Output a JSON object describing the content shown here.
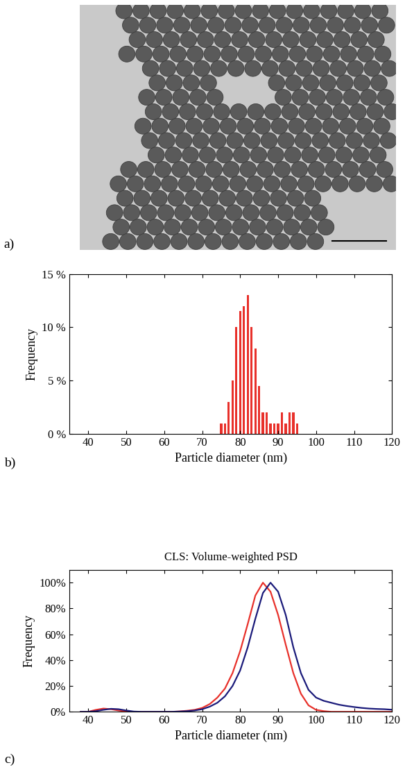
{
  "chart_data": [
    {
      "type": "image",
      "label": "a)"
    },
    {
      "type": "histogram",
      "label": "b)",
      "x_label": "Particle diameter (nm)",
      "y_label": "Frequency",
      "bins": [
        74.5,
        75.5,
        76.5,
        77.5,
        78.5,
        79.5,
        80.5,
        81.5,
        82.5,
        83.5,
        84.5,
        85.5,
        86.5,
        87.5,
        88.5,
        89.5,
        90.5,
        91.5,
        92.5,
        93.5,
        94.5,
        95.5
      ],
      "values": [
        1,
        1,
        3,
        5,
        10,
        11.5,
        12,
        13,
        10,
        8,
        4.5,
        2,
        2,
        1,
        1,
        1,
        2,
        1,
        2,
        2,
        1
      ],
      "color": "#e8302a",
      "xlim": [
        35,
        120
      ],
      "xticks": [
        40,
        50,
        60,
        70,
        80,
        90,
        100,
        110,
        120
      ],
      "ylim": [
        0,
        15
      ],
      "yticks": [
        {
          "value": 0,
          "label": "0 %"
        },
        {
          "value": 5,
          "label": "5 %"
        },
        {
          "value": 10,
          "label": "10 %"
        },
        {
          "value": 15,
          "label": "15 %"
        }
      ],
      "grid": false
    },
    {
      "type": "line",
      "label": "c)",
      "title": "CLS: Volume-weighted PSD",
      "x_label": "Particle diameter (nm)",
      "y_label": "Frequency",
      "x": [
        38,
        40,
        42,
        44,
        46,
        48,
        50,
        52,
        54,
        56,
        58,
        60,
        62,
        64,
        66,
        68,
        70,
        72,
        74,
        76,
        78,
        80,
        82,
        84,
        86,
        88,
        90,
        92,
        94,
        96,
        98,
        100,
        102,
        104,
        106,
        108,
        110,
        112,
        114,
        116,
        118,
        120
      ],
      "series": [
        {
          "color": "#e8302a",
          "values": [
            0,
            0,
            1.5,
            2.5,
            2,
            1,
            0.3,
            0,
            0,
            0,
            0,
            0,
            0,
            0.3,
            0.8,
            1.5,
            3,
            6,
            11,
            18,
            30,
            47,
            68,
            90,
            100,
            93,
            75,
            52,
            30,
            14,
            5,
            1.5,
            0.5,
            0,
            0,
            0,
            0,
            0,
            0,
            0,
            0,
            0
          ]
        },
        {
          "color": "#1a1a7a",
          "values": [
            0,
            0,
            0.5,
            1.5,
            2.3,
            2,
            1,
            0.2,
            0,
            0,
            0,
            0,
            0,
            0.2,
            0.5,
            1,
            2,
            4,
            7,
            12,
            20,
            32,
            50,
            72,
            92,
            100,
            93,
            75,
            50,
            30,
            17,
            11,
            8.5,
            7,
            5.5,
            4.5,
            3.7,
            3,
            2.5,
            2.2,
            2,
            1.6
          ]
        }
      ],
      "xlim": [
        35,
        120
      ],
      "xticks": [
        40,
        50,
        60,
        70,
        80,
        90,
        100,
        110,
        120
      ],
      "ylim": [
        0,
        110
      ],
      "yticks": [
        {
          "value": 0,
          "label": "0%"
        },
        {
          "value": 20,
          "label": "20%"
        },
        {
          "value": 40,
          "label": "40%"
        },
        {
          "value": 60,
          "label": "60%"
        },
        {
          "value": 80,
          "label": "80%"
        },
        {
          "value": 100,
          "label": "100%"
        }
      ],
      "grid": false
    }
  ]
}
